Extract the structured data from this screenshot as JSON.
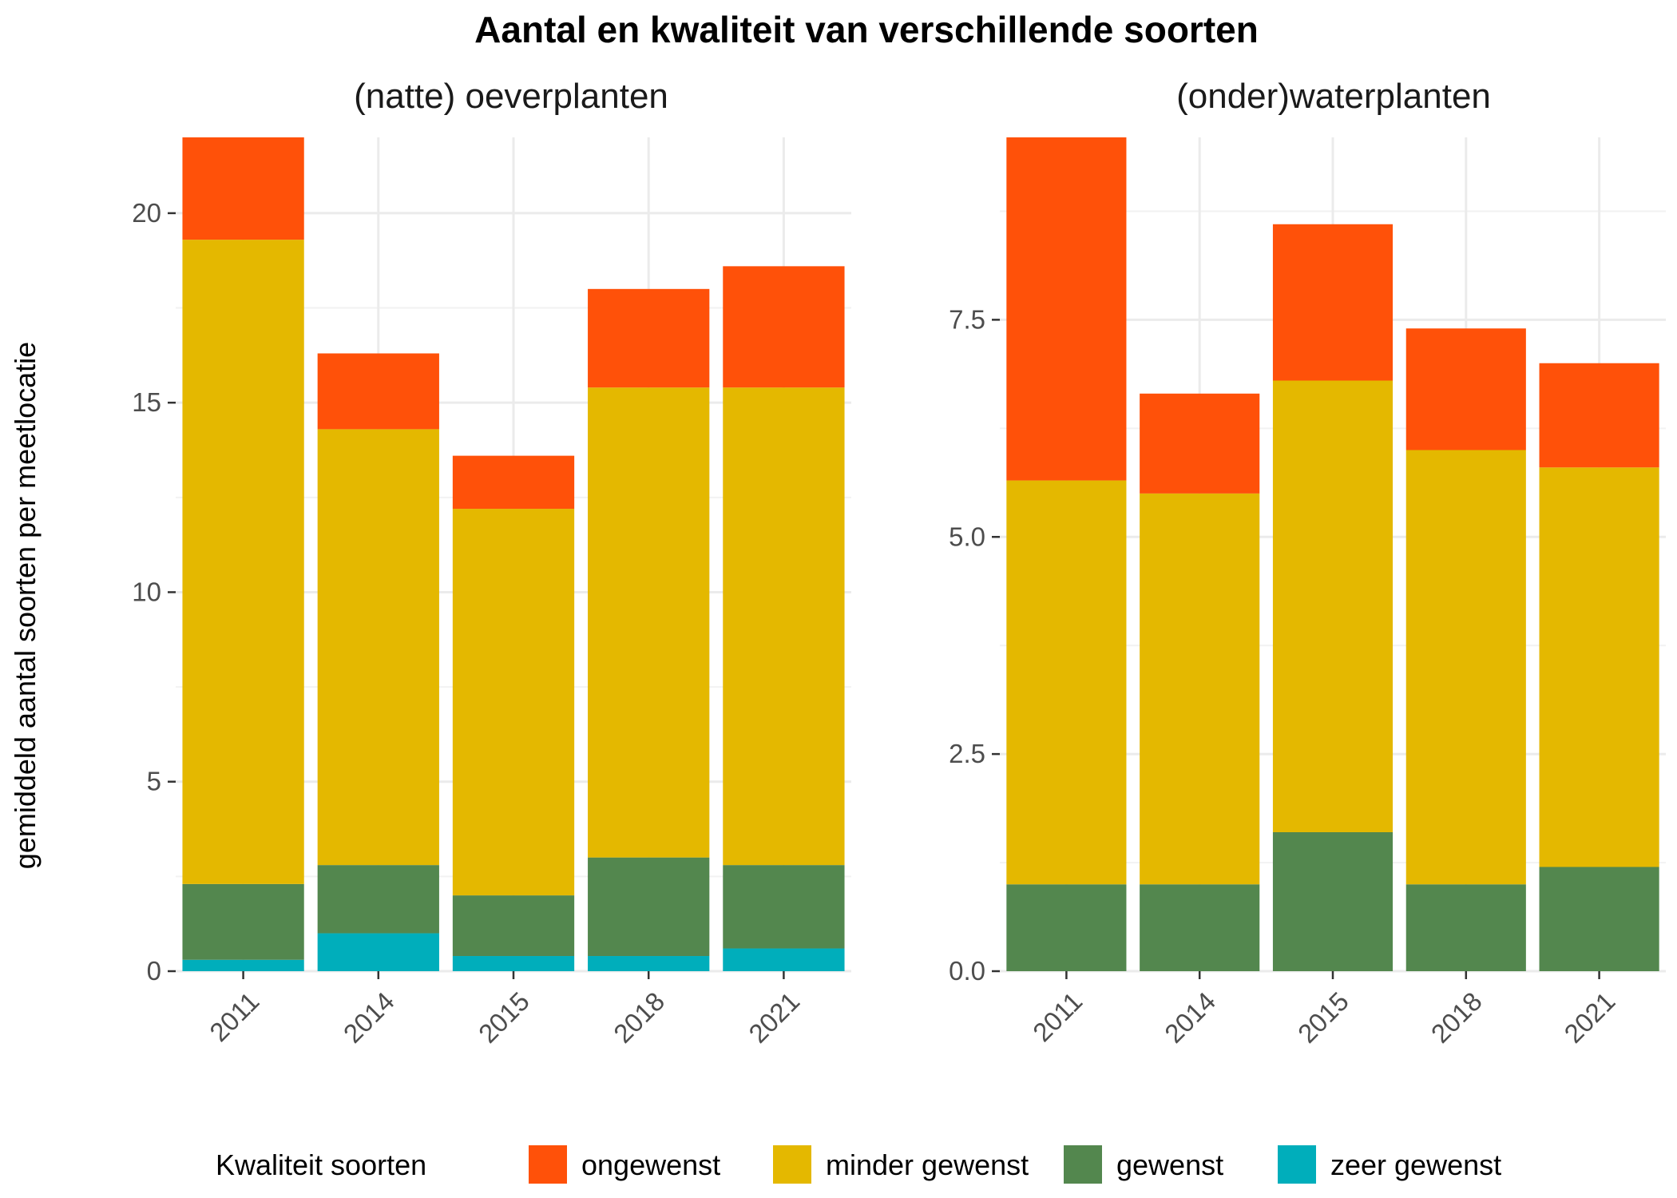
{
  "title": "Aantal en kwaliteit van verschillende soorten",
  "ylabel": "gemiddeld aantal soorten per meetlocatie",
  "legend": {
    "title": "Kwaliteit soorten",
    "items": [
      {
        "label": "ongewenst",
        "color": "#FF5109"
      },
      {
        "label": "minder gewenst",
        "color": "#E4B800"
      },
      {
        "label": "gewenst",
        "color": "#53874E"
      },
      {
        "label": "zeer gewenst",
        "color": "#00AEBB"
      }
    ]
  },
  "chart_data": [
    {
      "type": "bar",
      "stacked": true,
      "subtitle": "(natte) oeverplanten",
      "categories": [
        "2011",
        "2014",
        "2015",
        "2018",
        "2021"
      ],
      "ylim": [
        0,
        22
      ],
      "yticks": [
        0,
        5,
        10,
        15,
        20
      ],
      "ytick_labels": [
        "0",
        "5",
        "10",
        "15",
        "20"
      ],
      "grid": true,
      "series": [
        {
          "name": "zeer gewenst",
          "values": [
            0.3,
            1.0,
            0.4,
            0.4,
            0.6
          ]
        },
        {
          "name": "gewenst",
          "values": [
            2.0,
            1.8,
            1.6,
            2.6,
            2.2
          ]
        },
        {
          "name": "minder gewenst",
          "values": [
            17.0,
            11.5,
            10.2,
            12.4,
            12.6
          ]
        },
        {
          "name": "ongewenst",
          "values": [
            2.7,
            2.0,
            1.4,
            2.6,
            3.2
          ]
        }
      ]
    },
    {
      "type": "bar",
      "stacked": true,
      "subtitle": "(onder)waterplanten",
      "categories": [
        "2011",
        "2014",
        "2015",
        "2018",
        "2021"
      ],
      "ylim": [
        0,
        9.6
      ],
      "yticks": [
        0,
        2.5,
        5,
        7.5
      ],
      "ytick_labels": [
        "0.0",
        "2.5",
        "5.0",
        "7.5"
      ],
      "grid": true,
      "series": [
        {
          "name": "zeer gewenst",
          "values": [
            0,
            0,
            0,
            0,
            0
          ]
        },
        {
          "name": "gewenst",
          "values": [
            1.0,
            1.0,
            1.6,
            1.0,
            1.2
          ]
        },
        {
          "name": "minder gewenst",
          "values": [
            4.65,
            4.5,
            5.2,
            5.0,
            4.6
          ]
        },
        {
          "name": "ongewenst",
          "values": [
            3.95,
            1.15,
            1.8,
            1.4,
            1.2
          ]
        }
      ]
    }
  ]
}
